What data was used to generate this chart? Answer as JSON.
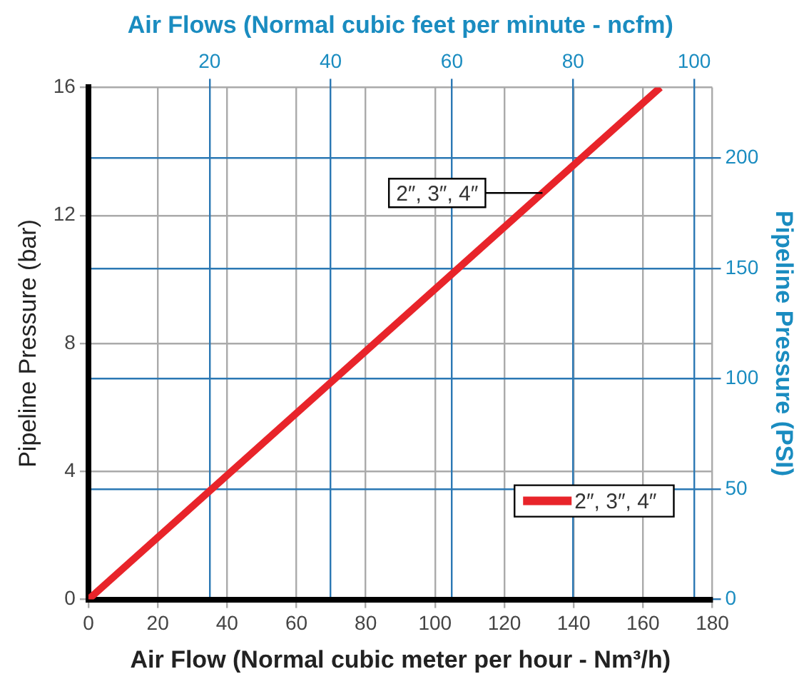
{
  "chart_data": {
    "type": "line",
    "xlabel": "Air Flow (Normal cubic meter per hour - Nm³/h)",
    "ylabel": "Pipeline Pressure (bar)",
    "x2label": "Air Flows (Normal cubic feet per minute - ncfm)",
    "y2label": "Pipeline Pressure (PSI)",
    "xlim": [
      0,
      180
    ],
    "xticks": [
      0,
      20,
      40,
      60,
      80,
      100,
      120,
      140,
      160,
      180
    ],
    "ylim": [
      0,
      16
    ],
    "yticks": [
      0,
      4,
      8,
      12,
      16
    ],
    "x2lim": [
      0,
      103
    ],
    "x2ticks": [
      20,
      40,
      60,
      80,
      100
    ],
    "y2lim": [
      0,
      232
    ],
    "y2ticks": [
      0,
      50,
      100,
      150,
      200
    ],
    "grid": true,
    "legend": "bottom right",
    "series": [
      {
        "name": "2″, 3″, 4″",
        "color": "#e8242a",
        "x": [
          0,
          165
        ],
        "values": [
          0,
          16
        ]
      }
    ],
    "annotations": [
      {
        "text": "2″, 3″, 4″",
        "x": 131,
        "y": 12.7
      }
    ]
  }
}
